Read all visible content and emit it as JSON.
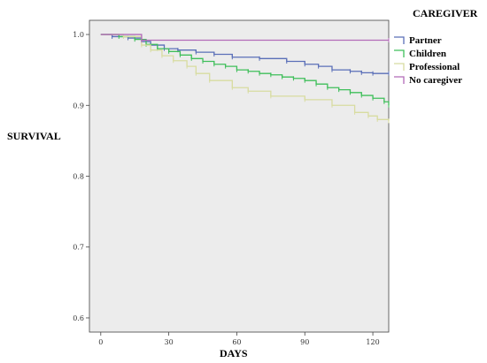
{
  "chart_data": {
    "type": "line",
    "title": "",
    "xlabel": "DAYS",
    "ylabel": "SURVIVAL",
    "legend_title": "CAREGIVER",
    "legend_placement": "right",
    "xlim": [
      -5,
      127
    ],
    "ylim": [
      0.58,
      1.02
    ],
    "x_ticks": [
      0,
      30,
      60,
      90,
      120
    ],
    "y_ticks": [
      0.6,
      0.7,
      0.8,
      0.9,
      1.0
    ],
    "y_tick_labels": [
      "0.6",
      "0.7",
      "0.8",
      "0.9",
      "1.0"
    ],
    "grid": false,
    "plot_background": "#ececec",
    "series": [
      {
        "name": "Partner",
        "color": "#5a6fb8",
        "x": [
          0,
          5,
          12,
          18,
          22,
          28,
          34,
          42,
          50,
          58,
          70,
          82,
          90,
          96,
          102,
          110,
          115,
          120,
          127
        ],
        "y": [
          1.0,
          0.997,
          0.995,
          0.99,
          0.985,
          0.98,
          0.978,
          0.975,
          0.972,
          0.968,
          0.966,
          0.962,
          0.958,
          0.955,
          0.95,
          0.948,
          0.946,
          0.945,
          0.945
        ]
      },
      {
        "name": "Children",
        "color": "#3fbf5a",
        "x": [
          0,
          8,
          15,
          20,
          25,
          30,
          35,
          40,
          45,
          50,
          55,
          60,
          65,
          70,
          75,
          80,
          85,
          90,
          95,
          100,
          105,
          110,
          115,
          120,
          125,
          127
        ],
        "y": [
          1.0,
          0.997,
          0.993,
          0.986,
          0.98,
          0.976,
          0.971,
          0.966,
          0.962,
          0.958,
          0.955,
          0.95,
          0.948,
          0.945,
          0.943,
          0.94,
          0.938,
          0.935,
          0.93,
          0.925,
          0.922,
          0.918,
          0.914,
          0.91,
          0.905,
          0.9
        ]
      },
      {
        "name": "Professional",
        "color": "#d8dca0",
        "x": [
          0,
          10,
          18,
          22,
          27,
          32,
          38,
          42,
          48,
          58,
          65,
          75,
          90,
          102,
          112,
          118,
          122,
          127
        ],
        "y": [
          1.0,
          0.997,
          0.985,
          0.978,
          0.97,
          0.963,
          0.955,
          0.945,
          0.935,
          0.925,
          0.92,
          0.913,
          0.908,
          0.9,
          0.89,
          0.885,
          0.88,
          0.878
        ]
      },
      {
        "name": "No caregiver",
        "color": "#b26ab8",
        "x": [
          0,
          18,
          127
        ],
        "y": [
          1.0,
          0.992,
          0.992
        ]
      }
    ]
  }
}
